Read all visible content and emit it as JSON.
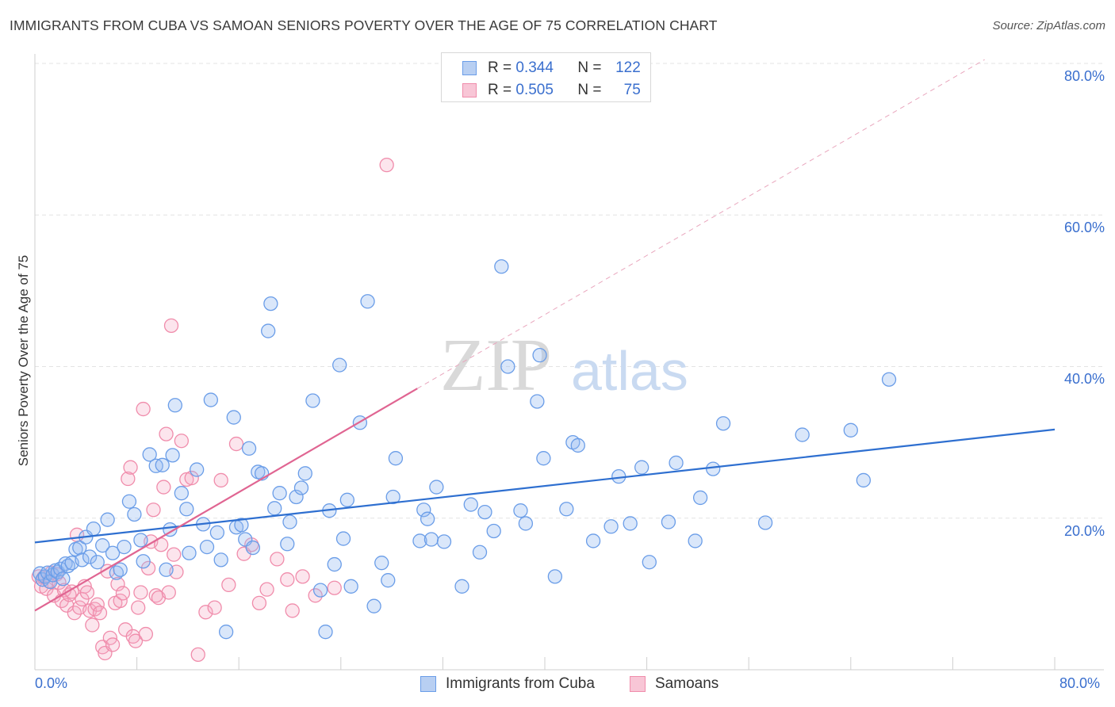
{
  "title": "IMMIGRANTS FROM CUBA VS SAMOAN SENIORS POVERTY OVER THE AGE OF 75 CORRELATION CHART",
  "source": "Source: ZipAtlas.com",
  "watermark": {
    "zip": "ZIP",
    "atlas": "atlas"
  },
  "legend_top": [
    {
      "r_label": "R =",
      "r": "0.344",
      "n_label": "N =",
      "n": "122"
    },
    {
      "r_label": "R =",
      "r": "0.505",
      "n_label": "N =",
      "n": "75"
    }
  ],
  "chart_data": {
    "type": "scatter",
    "title": "IMMIGRANTS FROM CUBA VS SAMOAN SENIORS POVERTY OVER THE AGE OF 75 CORRELATION CHART",
    "xlabel": "",
    "ylabel": "Seniors Poverty Over the Age of 75",
    "xlim": [
      0,
      80
    ],
    "ylim": [
      0,
      80
    ],
    "x_tick_labels": [
      "0.0%",
      "80.0%"
    ],
    "y_tick_labels": [
      "20.0%",
      "40.0%",
      "60.0%",
      "80.0%"
    ],
    "y_ticks": [
      20,
      40,
      60,
      80
    ],
    "grid": true,
    "legend_position": "bottom",
    "colors": {
      "cuba": "#6a9de8",
      "samoa": "#f08cab",
      "cuba_line": "#2e6fd0",
      "samoa_line": "#e06592"
    },
    "series": [
      {
        "name": "Immigrants from Cuba",
        "r": 0.344,
        "n": 122,
        "trend": {
          "x": [
            0,
            80
          ],
          "y": [
            16.8,
            31.7
          ]
        },
        "points": [
          [
            0.4,
            12.7
          ],
          [
            0.6,
            11.9
          ],
          [
            0.8,
            12.3
          ],
          [
            1.0,
            12.8
          ],
          [
            1.2,
            11.6
          ],
          [
            1.4,
            12.5
          ],
          [
            1.6,
            13.1
          ],
          [
            1.8,
            12.9
          ],
          [
            2.0,
            13.3
          ],
          [
            2.2,
            12.0
          ],
          [
            2.4,
            14.0
          ],
          [
            2.6,
            13.7
          ],
          [
            2.9,
            14.1
          ],
          [
            3.2,
            15.9
          ],
          [
            3.5,
            16.1
          ],
          [
            3.7,
            14.5
          ],
          [
            4.0,
            17.5
          ],
          [
            4.3,
            14.9
          ],
          [
            4.6,
            18.6
          ],
          [
            4.9,
            14.2
          ],
          [
            5.3,
            16.4
          ],
          [
            5.7,
            19.8
          ],
          [
            6.1,
            15.4
          ],
          [
            6.4,
            12.8
          ],
          [
            6.7,
            13.2
          ],
          [
            7.0,
            16.2
          ],
          [
            7.4,
            22.2
          ],
          [
            7.8,
            20.5
          ],
          [
            8.3,
            17.1
          ],
          [
            8.5,
            14.3
          ],
          [
            9.0,
            28.4
          ],
          [
            9.5,
            26.9
          ],
          [
            10.0,
            27.0
          ],
          [
            10.3,
            13.2
          ],
          [
            10.6,
            18.5
          ],
          [
            10.8,
            28.3
          ],
          [
            11.0,
            34.9
          ],
          [
            11.5,
            23.3
          ],
          [
            11.9,
            21.2
          ],
          [
            12.1,
            15.4
          ],
          [
            12.7,
            26.4
          ],
          [
            13.2,
            19.2
          ],
          [
            13.5,
            16.2
          ],
          [
            13.8,
            35.6
          ],
          [
            14.3,
            18.1
          ],
          [
            14.6,
            14.5
          ],
          [
            15.0,
            5.0
          ],
          [
            15.6,
            33.3
          ],
          [
            15.8,
            18.8
          ],
          [
            16.2,
            19.1
          ],
          [
            16.5,
            17.2
          ],
          [
            16.8,
            29.2
          ],
          [
            17.1,
            16.1
          ],
          [
            17.5,
            26.1
          ],
          [
            17.8,
            25.9
          ],
          [
            18.3,
            44.7
          ],
          [
            18.5,
            48.3
          ],
          [
            18.8,
            21.3
          ],
          [
            19.2,
            23.3
          ],
          [
            19.8,
            16.6
          ],
          [
            20.0,
            19.5
          ],
          [
            20.5,
            22.8
          ],
          [
            20.9,
            24.0
          ],
          [
            21.2,
            25.9
          ],
          [
            21.8,
            35.5
          ],
          [
            22.4,
            10.5
          ],
          [
            22.8,
            5.0
          ],
          [
            23.1,
            21.0
          ],
          [
            23.5,
            13.9
          ],
          [
            23.9,
            40.2
          ],
          [
            24.2,
            17.3
          ],
          [
            24.5,
            22.4
          ],
          [
            24.8,
            11.0
          ],
          [
            25.5,
            32.6
          ],
          [
            26.1,
            48.6
          ],
          [
            26.6,
            8.4
          ],
          [
            27.2,
            14.1
          ],
          [
            27.7,
            11.8
          ],
          [
            28.1,
            22.8
          ],
          [
            28.3,
            27.9
          ],
          [
            30.2,
            17.0
          ],
          [
            30.5,
            21.1
          ],
          [
            30.8,
            19.9
          ],
          [
            31.1,
            17.2
          ],
          [
            31.5,
            24.1
          ],
          [
            32.1,
            16.9
          ],
          [
            33.5,
            11.0
          ],
          [
            34.2,
            21.8
          ],
          [
            34.9,
            15.5
          ],
          [
            35.3,
            20.8
          ],
          [
            36.0,
            18.3
          ],
          [
            36.6,
            53.2
          ],
          [
            37.1,
            40.0
          ],
          [
            38.1,
            21.0
          ],
          [
            38.5,
            19.3
          ],
          [
            39.4,
            35.4
          ],
          [
            39.6,
            41.5
          ],
          [
            39.9,
            27.9
          ],
          [
            40.8,
            12.3
          ],
          [
            41.7,
            21.2
          ],
          [
            42.2,
            30.0
          ],
          [
            42.6,
            29.6
          ],
          [
            43.8,
            17.0
          ],
          [
            45.2,
            18.9
          ],
          [
            45.8,
            25.5
          ],
          [
            46.7,
            19.3
          ],
          [
            47.6,
            26.7
          ],
          [
            48.2,
            14.2
          ],
          [
            49.7,
            19.5
          ],
          [
            50.3,
            27.3
          ],
          [
            51.8,
            17.0
          ],
          [
            52.2,
            22.7
          ],
          [
            53.2,
            26.5
          ],
          [
            54.0,
            32.5
          ],
          [
            57.3,
            19.4
          ],
          [
            60.2,
            31.0
          ],
          [
            64.0,
            31.6
          ],
          [
            65.0,
            25.0
          ],
          [
            67.0,
            38.3
          ]
        ]
      },
      {
        "name": "Samoans",
        "r": 0.505,
        "n": 75,
        "trend": {
          "x": [
            0,
            30
          ],
          "y": [
            7.8,
            37.1
          ],
          "extended": {
            "x": [
              30,
              74.5
            ],
            "y": [
              37.1,
              80.5
            ]
          }
        },
        "points": [
          [
            0.3,
            12.3
          ],
          [
            0.5,
            11.0
          ],
          [
            0.7,
            12.2
          ],
          [
            0.9,
            10.7
          ],
          [
            1.1,
            11.7
          ],
          [
            1.3,
            12.8
          ],
          [
            1.5,
            9.8
          ],
          [
            1.7,
            12.6
          ],
          [
            1.9,
            11.5
          ],
          [
            2.1,
            9.1
          ],
          [
            2.3,
            10.5
          ],
          [
            2.5,
            8.5
          ],
          [
            2.7,
            9.9
          ],
          [
            2.9,
            10.3
          ],
          [
            3.1,
            7.5
          ],
          [
            3.3,
            17.8
          ],
          [
            3.5,
            8.2
          ],
          [
            3.7,
            9.3
          ],
          [
            3.9,
            11.0
          ],
          [
            4.1,
            10.2
          ],
          [
            4.3,
            7.8
          ],
          [
            4.5,
            5.9
          ],
          [
            4.7,
            8.0
          ],
          [
            4.9,
            8.6
          ],
          [
            5.1,
            7.5
          ],
          [
            5.3,
            3.0
          ],
          [
            5.5,
            2.2
          ],
          [
            5.7,
            13.0
          ],
          [
            5.9,
            4.2
          ],
          [
            6.1,
            3.3
          ],
          [
            6.3,
            8.8
          ],
          [
            6.5,
            11.3
          ],
          [
            6.7,
            9.1
          ],
          [
            6.9,
            10.1
          ],
          [
            7.1,
            5.3
          ],
          [
            7.3,
            25.2
          ],
          [
            7.5,
            26.7
          ],
          [
            7.7,
            4.4
          ],
          [
            7.9,
            3.8
          ],
          [
            8.1,
            8.2
          ],
          [
            8.3,
            10.2
          ],
          [
            8.5,
            34.4
          ],
          [
            8.7,
            4.7
          ],
          [
            8.9,
            13.4
          ],
          [
            9.1,
            16.9
          ],
          [
            9.3,
            21.1
          ],
          [
            9.5,
            9.8
          ],
          [
            9.7,
            9.5
          ],
          [
            9.9,
            16.5
          ],
          [
            10.1,
            24.1
          ],
          [
            10.3,
            31.1
          ],
          [
            10.5,
            10.2
          ],
          [
            10.7,
            45.4
          ],
          [
            10.9,
            15.2
          ],
          [
            11.1,
            12.9
          ],
          [
            11.5,
            30.2
          ],
          [
            11.9,
            25.1
          ],
          [
            12.3,
            25.3
          ],
          [
            12.8,
            2.0
          ],
          [
            13.4,
            7.6
          ],
          [
            14.1,
            8.2
          ],
          [
            14.6,
            25.0
          ],
          [
            15.2,
            11.2
          ],
          [
            15.8,
            29.8
          ],
          [
            16.4,
            15.3
          ],
          [
            17.0,
            16.5
          ],
          [
            17.6,
            8.8
          ],
          [
            18.2,
            10.6
          ],
          [
            19.0,
            14.6
          ],
          [
            19.8,
            11.9
          ],
          [
            20.2,
            7.8
          ],
          [
            21.0,
            12.3
          ],
          [
            22.0,
            9.8
          ],
          [
            23.5,
            10.8
          ],
          [
            27.6,
            66.6
          ]
        ]
      }
    ]
  }
}
